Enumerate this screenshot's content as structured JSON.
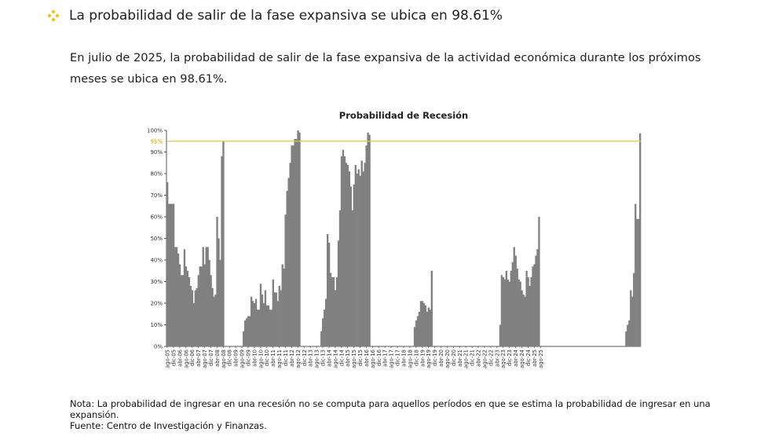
{
  "heading": {
    "text": "La probabilidad de salir de la fase expansiva se ubica en 98.61%",
    "bullet_color": "#f2c100"
  },
  "intro": "En julio de 2025, la probabilidad de salir de la fase expansiva de la actividad económica durante los próximos meses se ubica en 98.61%.",
  "chart_data": {
    "type": "bar",
    "title": "Probabilidad de Recesión",
    "xlabel": "",
    "ylabel": "",
    "ylim": [
      0,
      100
    ],
    "yticks": [
      "0%",
      "10%",
      "20%",
      "30%",
      "40%",
      "50%",
      "60%",
      "70%",
      "80%",
      "90%",
      "100%"
    ],
    "threshold": {
      "value": 95,
      "label": "95%",
      "color": "#f0c040"
    },
    "bar_color": "#808080",
    "x_tick_labels": [
      "ago-05",
      "dic-05",
      "abr-06",
      "ago-06",
      "dic-06",
      "abr-07",
      "ago-07",
      "dic-07",
      "abr-08",
      "ago-08",
      "dic-08",
      "abr-09",
      "ago-09",
      "dic-09",
      "abr-10",
      "ago-10",
      "dic-10",
      "abr-11",
      "ago-11",
      "dic-11",
      "abr-12",
      "ago-12",
      "dic-12",
      "abr-13",
      "ago-13",
      "dic-13",
      "abr-14",
      "ago-14",
      "dic-14",
      "abr-15",
      "ago-15",
      "dic-15",
      "abr-16",
      "ago-16",
      "dic-16",
      "abr-17",
      "ago-17",
      "dic-17",
      "abr-18",
      "ago-18",
      "dic-18",
      "abr-19",
      "ago-19",
      "dic-19",
      "abr-20",
      "ago-20",
      "dic-20",
      "abr-21",
      "ago-21",
      "dic-21",
      "abr-22",
      "ago-22",
      "dic-22",
      "abr-23",
      "ago-23",
      "dic-23",
      "abr-24",
      "ago-24",
      "dic-24",
      "abr-25",
      "ago-25"
    ],
    "values": [
      76,
      66,
      66,
      66,
      66,
      46,
      46,
      43,
      38,
      33,
      33,
      45,
      37,
      35,
      32,
      28,
      26,
      20,
      26,
      27,
      33,
      37,
      37,
      46,
      38,
      46,
      46,
      40,
      33,
      27,
      23,
      24,
      60,
      50,
      40,
      88,
      95,
      0,
      0,
      0,
      0,
      0,
      0,
      0,
      0,
      0,
      0,
      0,
      0,
      7,
      12,
      13,
      14,
      14,
      23,
      21,
      20,
      22,
      17,
      17,
      29,
      24,
      20,
      26,
      19,
      19,
      17,
      17,
      31,
      25,
      25,
      21,
      28,
      26,
      38,
      36,
      61,
      72,
      78,
      85,
      93,
      93,
      96,
      96,
      100,
      99,
      0,
      0,
      0,
      0,
      0,
      0,
      0,
      0,
      0,
      0,
      0,
      0,
      0,
      7,
      13,
      17,
      22,
      52,
      48,
      34,
      32,
      32,
      26,
      32,
      49,
      63,
      88,
      91,
      88,
      85,
      84,
      81,
      74,
      63,
      75,
      84,
      80,
      82,
      79,
      86,
      81,
      85,
      93,
      99,
      98,
      0,
      0,
      0,
      0,
      0,
      0,
      0,
      0,
      0,
      0,
      0,
      0,
      0,
      0,
      0,
      0,
      0,
      0,
      0,
      0,
      0,
      0,
      0,
      0,
      0,
      0,
      0,
      0,
      9,
      12,
      14,
      16,
      21,
      21,
      20,
      19,
      16,
      18,
      17,
      35,
      0,
      0,
      0,
      0,
      0,
      0,
      0,
      0,
      0,
      0,
      0,
      0,
      0,
      0,
      0,
      0,
      0,
      0,
      0,
      0,
      0,
      0,
      0,
      0,
      0,
      0,
      0,
      0,
      0,
      0,
      0,
      0,
      0,
      0,
      0,
      0,
      0,
      0,
      0,
      0,
      0,
      0,
      0,
      10,
      33,
      32,
      31,
      35,
      31,
      30,
      35,
      39,
      46,
      42,
      36,
      31,
      30,
      26,
      24,
      23,
      35,
      32,
      28,
      32,
      37,
      38,
      42,
      45,
      60,
      0,
      0,
      0,
      0,
      0,
      0,
      0,
      0,
      0,
      0,
      0,
      0,
      0,
      0,
      0,
      0,
      0,
      0,
      0,
      0,
      0,
      0,
      0,
      0,
      0,
      0,
      0,
      0,
      0,
      0,
      0,
      0,
      0,
      0,
      0,
      0,
      0,
      0,
      0,
      0,
      0,
      0,
      0,
      0,
      0,
      0,
      0,
      0,
      0,
      0,
      0,
      0,
      0,
      0,
      0,
      7,
      10,
      12,
      26,
      23,
      34,
      66,
      59,
      59,
      98.61
    ]
  },
  "notes": {
    "nota": "Nota: La probabilidad de ingresar en una recesión no se computa para aquellos períodos en que se estima la probabilidad de ingresar en una expansión.",
    "fuente": "Fuente: Centro de Investigación y Finanzas."
  }
}
